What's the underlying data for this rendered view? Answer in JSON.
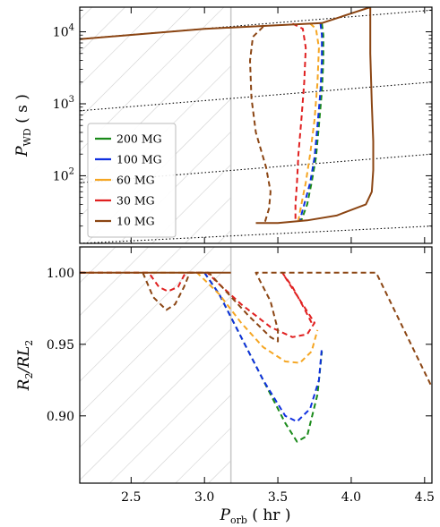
{
  "chart_data": [
    {
      "panel": "top",
      "type": "line",
      "ylabel": "P_WD ( s )",
      "yscale": "log",
      "xlim": [
        2.15,
        4.55
      ],
      "ylim": [
        11.5,
        22000
      ],
      "yticks": [
        100,
        1000,
        10000
      ],
      "yticklabels": [
        "10^2",
        "10^3",
        "10^4"
      ],
      "shaded_region": {
        "x_max": 3.18,
        "pattern": "diagonal-hatch"
      },
      "period_gap_line": 3.18,
      "legend": {
        "placement": "lower-left",
        "entries": [
          "200 MG",
          "100 MG",
          "60 MG",
          "30 MG",
          "10 MG"
        ]
      },
      "reference_lines": [
        {
          "style": "dotted",
          "points": [
            [
              2.15,
              8000
            ],
            [
              4.55,
              20000
            ]
          ]
        },
        {
          "style": "dotted",
          "points": [
            [
              2.15,
              800
            ],
            [
              4.55,
              2000
            ]
          ]
        },
        {
          "style": "dotted",
          "points": [
            [
              2.15,
              80
            ],
            [
              4.55,
              200
            ]
          ]
        },
        {
          "style": "dotted",
          "points": [
            [
              2.15,
              11.5
            ],
            [
              4.55,
              20
            ]
          ]
        }
      ],
      "series": [
        {
          "name": "200 MG",
          "color": "#1a8a1a",
          "dash": true,
          "points": [
            [
              3.8,
              13000
            ],
            [
              3.81,
              9000
            ],
            [
              3.81,
              4000
            ],
            [
              3.8,
              1500
            ],
            [
              3.78,
              500
            ],
            [
              3.76,
              180
            ],
            [
              3.73,
              80
            ],
            [
              3.7,
              40
            ],
            [
              3.66,
              24
            ]
          ]
        },
        {
          "name": "100 MG",
          "color": "#1030e0",
          "dash": true,
          "points": [
            [
              3.79,
              13000
            ],
            [
              3.8,
              9000
            ],
            [
              3.8,
              4000
            ],
            [
              3.79,
              1500
            ],
            [
              3.77,
              500
            ],
            [
              3.75,
              180
            ],
            [
              3.72,
              80
            ],
            [
              3.68,
              40
            ],
            [
              3.65,
              24
            ]
          ]
        },
        {
          "name": "60 MG",
          "color": "#f5a623",
          "dash": true,
          "points": [
            [
              3.72,
              13000
            ],
            [
              3.76,
              11000
            ],
            [
              3.78,
              6000
            ],
            [
              3.77,
              2000
            ],
            [
              3.75,
              600
            ],
            [
              3.72,
              200
            ],
            [
              3.69,
              80
            ],
            [
              3.66,
              40
            ],
            [
              3.64,
              24
            ]
          ]
        },
        {
          "name": "30 MG",
          "color": "#e02020",
          "dash": true,
          "points": [
            [
              3.6,
              13000
            ],
            [
              3.67,
              11000
            ],
            [
              3.69,
              6000
            ],
            [
              3.68,
              2000
            ],
            [
              3.66,
              600
            ],
            [
              3.64,
              200
            ],
            [
              3.63,
              80
            ],
            [
              3.62,
              40
            ],
            [
              3.62,
              24
            ]
          ]
        },
        {
          "name": "10 MG",
          "color": "#8b4513",
          "dash": true,
          "points": [
            [
              3.4,
              11800
            ],
            [
              3.33,
              8500
            ],
            [
              3.31,
              4000
            ],
            [
              3.32,
              1200
            ],
            [
              3.35,
              400
            ],
            [
              3.42,
              130
            ],
            [
              3.45,
              60
            ],
            [
              3.44,
              35
            ],
            [
              3.41,
              22
            ]
          ]
        },
        {
          "name": "",
          "color": "#8b4513",
          "dash": false,
          "points": [
            [
              2.15,
              7900
            ],
            [
              3.0,
              11000
            ],
            [
              3.8,
              13200
            ],
            [
              4.13,
              22000
            ],
            [
              4.13,
              5000
            ],
            [
              4.14,
              1000
            ],
            [
              4.15,
              300
            ],
            [
              4.15,
              120
            ],
            [
              4.14,
              60
            ],
            [
              4.1,
              40
            ],
            [
              3.9,
              28
            ],
            [
              3.7,
              24
            ],
            [
              3.5,
              22
            ],
            [
              3.35,
              22
            ]
          ]
        }
      ]
    },
    {
      "panel": "bottom",
      "type": "line",
      "xlabel": "P_orb ( hr )",
      "ylabel": "R_2/RL_2",
      "xlim": [
        2.15,
        4.55
      ],
      "ylim": [
        0.853,
        1.018
      ],
      "xticks": [
        2.5,
        3.0,
        3.5,
        4.0,
        4.5
      ],
      "xticklabels": [
        "2.5",
        "3.0",
        "3.5",
        "4.0",
        "4.5"
      ],
      "yticks": [
        0.9,
        0.95,
        1.0
      ],
      "yticklabels": [
        "0.90",
        "0.95",
        "1.00"
      ],
      "shaded_region": {
        "x_max": 3.18,
        "pattern": "diagonal-hatch"
      },
      "period_gap_line": 3.18,
      "series": [
        {
          "name": "200 MG",
          "color": "#1a8a1a",
          "dash": true,
          "points": [
            [
              3.0,
              1.0
            ],
            [
              3.1,
              0.985
            ],
            [
              3.25,
              0.955
            ],
            [
              3.4,
              0.925
            ],
            [
              3.55,
              0.895
            ],
            [
              3.63,
              0.882
            ],
            [
              3.7,
              0.886
            ],
            [
              3.77,
              0.915
            ],
            [
              3.8,
              0.945
            ]
          ]
        },
        {
          "name": "100 MG",
          "color": "#1030e0",
          "dash": true,
          "points": [
            [
              3.0,
              1.0
            ],
            [
              3.1,
              0.985
            ],
            [
              3.25,
              0.955
            ],
            [
              3.4,
              0.925
            ],
            [
              3.55,
              0.9
            ],
            [
              3.63,
              0.896
            ],
            [
              3.72,
              0.905
            ],
            [
              3.78,
              0.925
            ],
            [
              3.8,
              0.948
            ]
          ]
        },
        {
          "name": "60 MG",
          "color": "#f5a623",
          "dash": true,
          "points": [
            [
              2.15,
              1.0
            ],
            [
              2.95,
              1.0
            ],
            [
              3.1,
              0.985
            ],
            [
              3.25,
              0.965
            ],
            [
              3.4,
              0.948
            ],
            [
              3.55,
              0.938
            ],
            [
              3.65,
              0.937
            ],
            [
              3.73,
              0.945
            ],
            [
              3.77,
              0.96
            ]
          ]
        },
        {
          "name": "30 MG",
          "color": "#e02020",
          "dash": true,
          "points": [
            [
              2.15,
              1.0
            ],
            [
              2.62,
              1.0
            ],
            [
              2.69,
              0.99
            ],
            [
              2.75,
              0.987
            ],
            [
              2.82,
              0.99
            ],
            [
              2.87,
              1.0
            ],
            [
              3.02,
              1.0
            ],
            [
              3.1,
              0.992
            ],
            [
              3.25,
              0.978
            ],
            [
              3.45,
              0.962
            ],
            [
              3.6,
              0.955
            ],
            [
              3.7,
              0.957
            ],
            [
              3.75,
              0.965
            ],
            [
              3.53,
              1.0
            ],
            [
              3.6,
              0.99
            ],
            [
              3.68,
              0.975
            ],
            [
              3.73,
              0.965
            ]
          ]
        },
        {
          "name": "10 MG",
          "color": "#8b4513",
          "dash": true,
          "points": [
            [
              2.58,
              1.0
            ],
            [
              2.65,
              0.983
            ],
            [
              2.74,
              0.974
            ],
            [
              2.8,
              0.978
            ],
            [
              2.86,
              0.99
            ],
            [
              2.9,
              1.0
            ],
            [
              3.03,
              1.0
            ],
            [
              3.12,
              0.99
            ],
            [
              3.3,
              0.97
            ],
            [
              3.45,
              0.955
            ],
            [
              3.5,
              0.952
            ],
            [
              3.5,
              0.96
            ],
            [
              3.45,
              0.98
            ],
            [
              3.35,
              1.0
            ],
            [
              4.17,
              1.0
            ],
            [
              4.55,
              0.92
            ]
          ]
        },
        {
          "name": "",
          "color": "#8b4513",
          "dash": false,
          "points": [
            [
              2.15,
              1.0
            ],
            [
              3.18,
              1.0
            ]
          ]
        }
      ]
    }
  ]
}
